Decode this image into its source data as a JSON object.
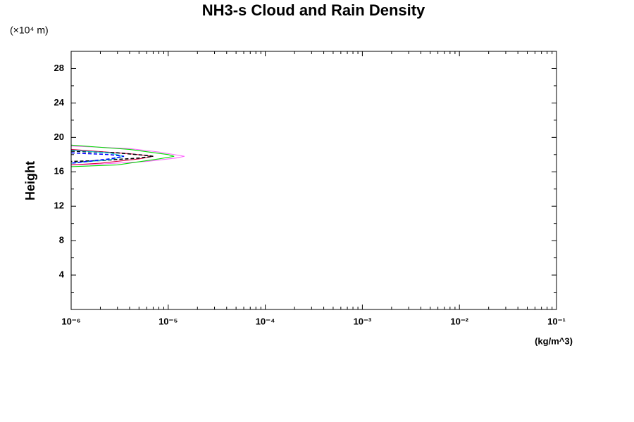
{
  "chart_data": {
    "type": "line",
    "title": "NH3-s Cloud and Rain Density",
    "y_unit": "(×10⁴ m)",
    "y_label": "Height",
    "x_label": "(kg/m^3)",
    "x_scale": "log",
    "xlim": [
      1e-06,
      0.1
    ],
    "xticks": [
      {
        "value": 1e-06,
        "label": "10⁻⁶"
      },
      {
        "value": 1e-05,
        "label": "10⁻⁵"
      },
      {
        "value": 0.0001,
        "label": "10⁻⁴"
      },
      {
        "value": 0.001,
        "label": "10⁻³"
      },
      {
        "value": 0.01,
        "label": "10⁻²"
      },
      {
        "value": 0.1,
        "label": "10⁻¹"
      }
    ],
    "ylim": [
      0,
      30
    ],
    "yticks": [
      4,
      8,
      12,
      16,
      20,
      24,
      28
    ],
    "series": [
      {
        "color": "#ff66ff",
        "dash": false,
        "x": [
          1e-06,
          4e-06,
          8e-06,
          1.3e-05,
          1.47e-05,
          1.2e-05,
          6e-06,
          2e-06,
          1e-06
        ],
        "values": [
          19.0,
          18.7,
          18.3,
          17.9,
          17.8,
          17.6,
          17.2,
          16.9,
          16.8
        ]
      },
      {
        "color": "#00dd00",
        "dash": false,
        "x": [
          1e-06,
          4e-06,
          1e-05,
          1.15e-05,
          8e-06,
          3e-06,
          1e-06
        ],
        "values": [
          19.1,
          18.6,
          18.0,
          17.8,
          17.5,
          16.8,
          16.6
        ]
      },
      {
        "color": "#dd0044",
        "dash": false,
        "x": [
          1e-06,
          4e-06,
          7e-06,
          5e-06,
          2e-06,
          1e-06
        ],
        "values": [
          18.6,
          18.1,
          17.8,
          17.5,
          17.0,
          16.8
        ]
      },
      {
        "color": "#000000",
        "dash": true,
        "x": [
          1e-06,
          3e-06,
          6e-06,
          7e-06,
          5e-06,
          2e-06,
          1e-06
        ],
        "values": [
          18.4,
          18.2,
          17.9,
          17.8,
          17.6,
          17.3,
          17.2
        ]
      },
      {
        "color": "#00cccc",
        "dash": false,
        "x": [
          1e-06,
          2.5e-06,
          3.5e-06,
          2.5e-06,
          1e-06
        ],
        "values": [
          18.5,
          18.2,
          17.8,
          17.4,
          17.0
        ]
      },
      {
        "color": "#0000ff",
        "dash": true,
        "x": [
          1e-06,
          2.5e-06,
          3.5e-06,
          2.5e-06,
          1e-06
        ],
        "values": [
          18.2,
          18.0,
          17.8,
          17.5,
          17.0
        ]
      }
    ]
  }
}
